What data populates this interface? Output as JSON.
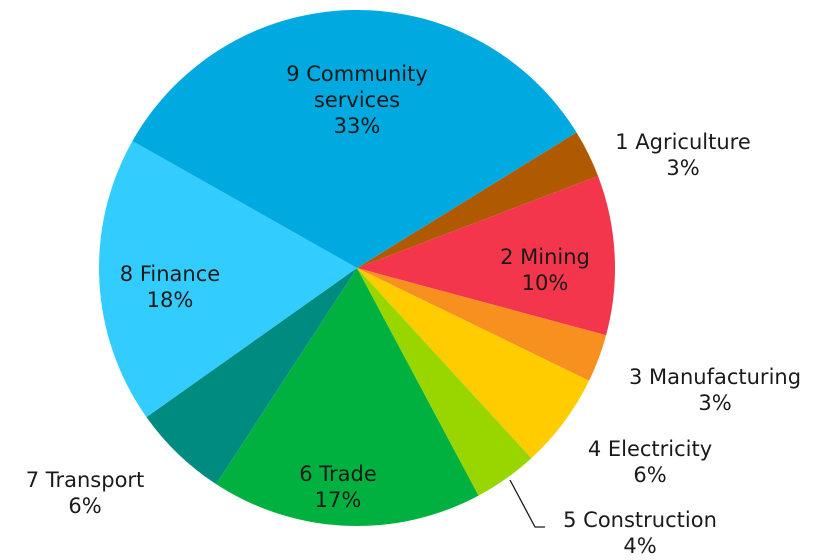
{
  "chart_data": {
    "type": "pie",
    "categories": [
      "1 Agriculture",
      "2 Mining",
      "3 Manufacturing",
      "4 Electricity",
      "5 Construction",
      "6 Trade",
      "7 Transport",
      "8 Finance",
      "9 Community services"
    ],
    "values": [
      3,
      10,
      3,
      6,
      4,
      17,
      6,
      18,
      33
    ],
    "value_labels": [
      "3%",
      "10%",
      "3%",
      "6%",
      "4%",
      "17%",
      "6%",
      "18%",
      "33%"
    ],
    "colors": [
      "#b05a00",
      "#f4364c",
      "#f7901e",
      "#ffcc00",
      "#99d600",
      "#00b140",
      "#008b80",
      "#33ccff",
      "#00a9e0"
    ]
  }
}
